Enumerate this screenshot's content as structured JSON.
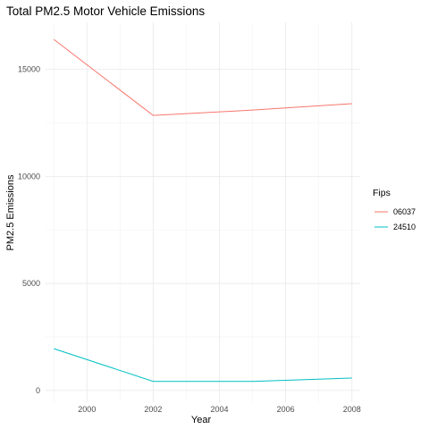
{
  "chart_data": {
    "type": "line",
    "title": "Total PM2.5 Motor Vehicle Emissions",
    "xlabel": "Year",
    "ylabel": "PM2.5 Emissions",
    "x": [
      1999,
      2002,
      2005,
      2008
    ],
    "xlim": [
      1998.75,
      2008.25
    ],
    "ylim": [
      -550,
      17200
    ],
    "xticks": [
      2000,
      2002,
      2004,
      2006,
      2008
    ],
    "yticks": [
      0,
      5000,
      10000,
      15000
    ],
    "xtick_labels": [
      "2000",
      "2002",
      "2004",
      "2006",
      "2008"
    ],
    "ytick_labels": [
      "0",
      "5000",
      "10000",
      "15000"
    ],
    "grid": true,
    "legend": {
      "title": "Fips",
      "position": "right"
    },
    "series": [
      {
        "name": "06037",
        "color": "#F8766D",
        "values": [
          16400,
          12850,
          13100,
          13400
        ]
      },
      {
        "name": "24510",
        "color": "#00BFC4",
        "values": [
          1950,
          420,
          420,
          580
        ]
      }
    ]
  }
}
